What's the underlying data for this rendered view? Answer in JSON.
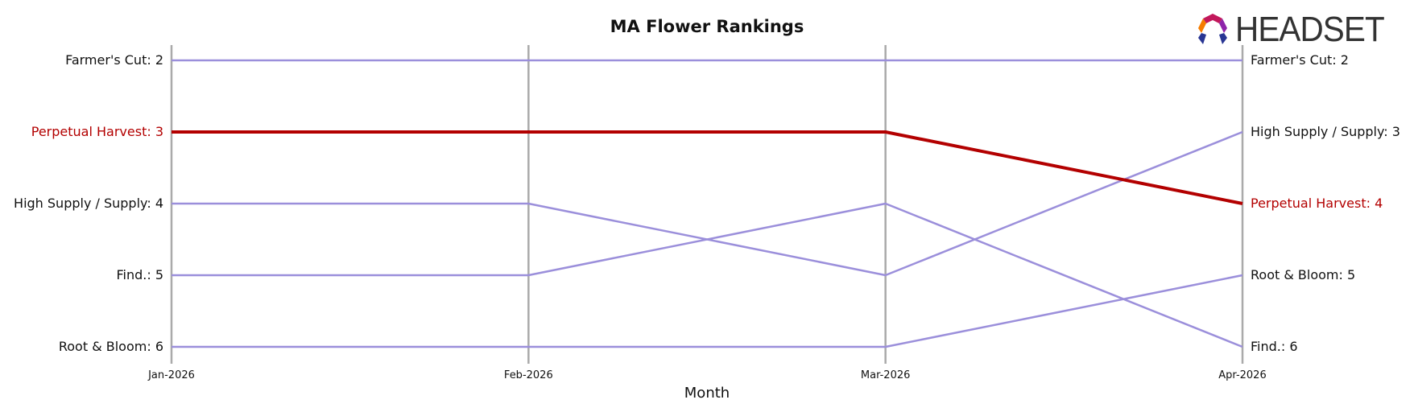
{
  "logo": {
    "text": "HEADSET",
    "icon": "headset-logo-icon"
  },
  "chart_data": {
    "type": "line",
    "title": "MA Flower Rankings",
    "xlabel": "Month",
    "ylabel": "",
    "x": [
      "Jan-2026",
      "Feb-2026",
      "Mar-2026",
      "Apr-2026"
    ],
    "ylim": [
      6,
      2
    ],
    "y_inverted": true,
    "grid": "vertical lines at each month",
    "highlight_color": "#b30000",
    "default_color": "#9b8fdb",
    "gridline_color": "#aaaaaa",
    "series": [
      {
        "name": "Farmer's Cut",
        "values": [
          2,
          2,
          2,
          2
        ],
        "highlight": false
      },
      {
        "name": "Perpetual Harvest",
        "values": [
          3,
          3,
          3,
          4
        ],
        "highlight": true
      },
      {
        "name": "High Supply / Supply",
        "values": [
          4,
          4,
          5,
          3
        ],
        "highlight": false
      },
      {
        "name": "Find.",
        "values": [
          5,
          5,
          4,
          6
        ],
        "highlight": false
      },
      {
        "name": "Root & Bloom",
        "values": [
          6,
          6,
          6,
          5
        ],
        "highlight": false
      }
    ]
  }
}
